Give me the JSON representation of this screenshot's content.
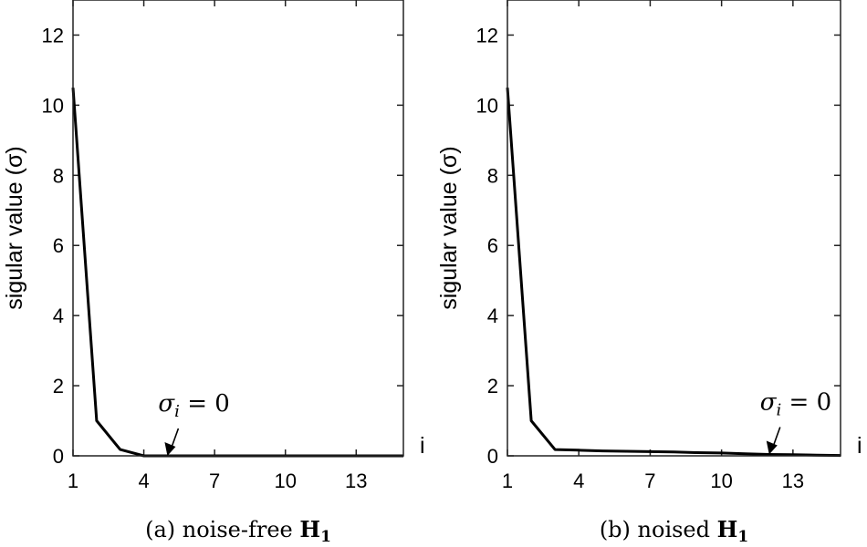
{
  "chart_data": [
    {
      "type": "line",
      "caption": "(a) noise-free",
      "caption_math": "H",
      "caption_math_sub": "1",
      "ylabel": "sigular value (σ)",
      "xlabel": "i",
      "xlim": [
        1,
        15
      ],
      "ylim": [
        0,
        13
      ],
      "xticks": [
        1,
        4,
        7,
        10,
        13
      ],
      "yticks": [
        0,
        2,
        4,
        6,
        8,
        10,
        12
      ],
      "grid": false,
      "series": [
        {
          "x": [
            1,
            2,
            3,
            4,
            5,
            6,
            7,
            8,
            9,
            10,
            11,
            12,
            13,
            14,
            15
          ],
          "y": [
            10.5,
            1.0,
            0.18,
            0.0,
            0.0,
            0.0,
            0.0,
            0.0,
            0.0,
            0.0,
            0.0,
            0.0,
            0.0,
            0.0,
            0.0
          ]
        }
      ],
      "annotation": {
        "text_var": "σ",
        "text_sub": "i",
        "text_rest": " = 0",
        "x": 5,
        "y": 0
      }
    },
    {
      "type": "line",
      "caption": "(b) noised",
      "caption_math": "H",
      "caption_math_sub": "1",
      "ylabel": "sigular value (σ)",
      "xlabel": "i",
      "xlim": [
        1,
        15
      ],
      "ylim": [
        0,
        13
      ],
      "xticks": [
        1,
        4,
        7,
        10,
        13
      ],
      "yticks": [
        0,
        2,
        4,
        6,
        8,
        10,
        12
      ],
      "grid": false,
      "series": [
        {
          "x": [
            1,
            2,
            3,
            4,
            5,
            6,
            7,
            8,
            9,
            10,
            11,
            12,
            13,
            14,
            15
          ],
          "y": [
            10.5,
            1.0,
            0.18,
            0.16,
            0.14,
            0.13,
            0.12,
            0.11,
            0.09,
            0.08,
            0.06,
            0.04,
            0.03,
            0.02,
            0.01
          ]
        }
      ],
      "annotation": {
        "text_var": "σ",
        "text_sub": "i",
        "text_rest": " = 0",
        "x": 12,
        "y": 0.04
      }
    }
  ]
}
